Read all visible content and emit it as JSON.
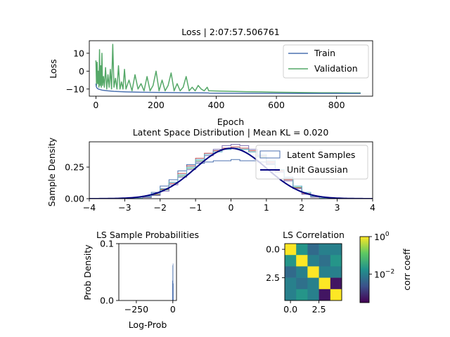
{
  "chart_data": [
    {
      "id": "loss",
      "type": "line",
      "title": "Loss | 2:07:57.506761",
      "xlabel": "Epoch",
      "ylabel": "Loss",
      "xlim": [
        -22,
        920
      ],
      "ylim": [
        -14,
        17
      ],
      "xticks": [
        0,
        200,
        400,
        600,
        800
      ],
      "xtick_labels": [
        "0",
        "200",
        "400",
        "600",
        "800"
      ],
      "yticks": [
        -10,
        0,
        10
      ],
      "ytick_labels": [
        "−10",
        "0",
        "10"
      ],
      "legend": "top-right",
      "series": [
        {
          "name": "Train",
          "color": "#4c72b0",
          "x": [
            0,
            1,
            3,
            6,
            10,
            20,
            40,
            60,
            100,
            150,
            200,
            250,
            300,
            350,
            375,
            376,
            400,
            500,
            600,
            700,
            800,
            880
          ],
          "y": [
            -7.0,
            -8.5,
            -9.3,
            -9.8,
            -10.1,
            -10.6,
            -11.0,
            -11.3,
            -11.6,
            -11.8,
            -11.9,
            -12.0,
            -12.1,
            -12.15,
            -12.2,
            -12.3,
            -12.35,
            -12.4,
            -12.45,
            -12.5,
            -12.5,
            -12.5
          ]
        },
        {
          "name": "Validation",
          "color": "#55a868",
          "x": [
            0,
            2,
            4,
            6,
            8,
            10,
            12,
            14,
            16,
            18,
            20,
            22,
            25,
            28,
            32,
            36,
            40,
            44,
            48,
            52,
            56,
            60,
            65,
            70,
            75,
            80,
            85,
            90,
            95,
            100,
            110,
            120,
            130,
            140,
            150,
            160,
            170,
            180,
            190,
            200,
            210,
            220,
            230,
            240,
            250,
            260,
            270,
            280,
            290,
            300,
            310,
            320,
            330,
            340,
            350,
            360,
            370,
            375,
            380,
            400,
            450,
            500,
            550,
            600,
            650,
            700,
            750,
            800,
            850,
            880
          ],
          "y": [
            6,
            -8,
            5,
            -7,
            0,
            -9,
            12,
            -8,
            3,
            -9,
            10,
            -8,
            -3,
            -9,
            2,
            -10,
            -2,
            -9,
            1,
            -10,
            15,
            -9,
            -4,
            -10,
            3,
            -10,
            -6,
            -10,
            1,
            -10,
            -5,
            -11,
            -2,
            -10,
            -7,
            -11,
            -3,
            -11,
            -8,
            0,
            -11,
            -5,
            -11,
            -8,
            -1,
            -11,
            -7,
            -11,
            -9,
            -3,
            -11,
            -9,
            -11,
            -8,
            -10,
            -11,
            -9,
            -11,
            -11.0,
            -11.1,
            -11.3,
            -11.5,
            -11.6,
            -11.8,
            -11.9,
            -12.0,
            -12.1,
            -12.1,
            -12.2,
            -12.2
          ]
        }
      ]
    },
    {
      "id": "latent",
      "type": "line",
      "title": "Latent Space Distribution | Mean KL = 0.020",
      "xlabel": "",
      "ylabel": "Sample Density",
      "xlim": [
        -4,
        4
      ],
      "ylim": [
        0,
        0.45
      ],
      "xticks": [
        -4,
        -3,
        -2,
        -1,
        0,
        1,
        2,
        3,
        4
      ],
      "xtick_labels": [
        "−4",
        "−3",
        "−2",
        "−1",
        "0",
        "1",
        "2",
        "3",
        "4"
      ],
      "yticks": [
        0,
        0.25
      ],
      "ytick_labels": [
        "0.00",
        "0.25"
      ],
      "legend": "top-right",
      "legend_entries": [
        {
          "name": "Latent Samples",
          "color": "#4c72b0",
          "style": "box"
        },
        {
          "name": "Unit Gaussian",
          "color": "#000080",
          "style": "line"
        }
      ],
      "bin_edges": [
        -2.75,
        -2.5,
        -2.25,
        -2.0,
        -1.75,
        -1.5,
        -1.25,
        -1.0,
        -0.75,
        -0.5,
        -0.25,
        0.0,
        0.25,
        0.5,
        0.75,
        1.0,
        1.25,
        1.5,
        1.75,
        2.0,
        2.25,
        2.5,
        2.75
      ],
      "histograms": [
        {
          "color": "#4c72b0",
          "densities": [
            0.005,
            0.02,
            0.05,
            0.1,
            0.15,
            0.22,
            0.27,
            0.28,
            0.29,
            0.3,
            0.3,
            0.31,
            0.3,
            0.3,
            0.29,
            0.27,
            0.22,
            0.17,
            0.1,
            0.05,
            0.02,
            0.005
          ]
        },
        {
          "color": "#55a868",
          "densities": [
            0.003,
            0.01,
            0.03,
            0.07,
            0.13,
            0.18,
            0.24,
            0.3,
            0.35,
            0.38,
            0.39,
            0.4,
            0.39,
            0.37,
            0.33,
            0.28,
            0.22,
            0.15,
            0.09,
            0.04,
            0.015,
            0.004
          ]
        },
        {
          "color": "#c44e52",
          "densities": [
            0.004,
            0.012,
            0.035,
            0.075,
            0.12,
            0.2,
            0.26,
            0.32,
            0.36,
            0.38,
            0.4,
            0.41,
            0.4,
            0.38,
            0.34,
            0.29,
            0.22,
            0.15,
            0.085,
            0.04,
            0.015,
            0.004
          ]
        },
        {
          "color": "#8172b2",
          "densities": [
            0.002,
            0.008,
            0.025,
            0.06,
            0.11,
            0.17,
            0.23,
            0.29,
            0.34,
            0.39,
            0.42,
            0.43,
            0.42,
            0.39,
            0.34,
            0.28,
            0.21,
            0.14,
            0.08,
            0.035,
            0.012,
            0.003
          ]
        },
        {
          "color": "#64b5cd",
          "densities": [
            0.004,
            0.015,
            0.04,
            0.08,
            0.13,
            0.19,
            0.25,
            0.31,
            0.35,
            0.37,
            0.39,
            0.4,
            0.39,
            0.37,
            0.35,
            0.3,
            0.23,
            0.16,
            0.1,
            0.05,
            0.018,
            0.005
          ]
        }
      ],
      "gaussian": {
        "mean": 0,
        "std": 1,
        "color": "#000080"
      }
    },
    {
      "id": "ls-prob",
      "type": "bar",
      "title": "LS Sample Probabilities",
      "xlabel": "Log-Prob",
      "ylabel": "Prob Density",
      "xlim": [
        -370,
        25
      ],
      "ylim": [
        0,
        0.1
      ],
      "xticks": [
        -250,
        0
      ],
      "xtick_labels": [
        "−250",
        "0"
      ],
      "yticks": [
        0,
        0.1
      ],
      "ytick_labels": [
        "0.0",
        "0.1"
      ],
      "bars": [
        {
          "x0": -4,
          "x1": -2,
          "value": 0.035
        },
        {
          "x0": -2,
          "x1": 0,
          "value": 0.062
        },
        {
          "x0": 0,
          "x1": 2,
          "value": 0.065
        },
        {
          "x0": 2,
          "x1": 4,
          "value": 0.03
        }
      ],
      "bar_color": "#4c72b0"
    },
    {
      "id": "ls-corr",
      "type": "heatmap",
      "title": "LS Correlation",
      "colorbar_label": "corr coeff",
      "colorbar_ticks": [
        {
          "label": "10",
          "exp": "0",
          "value": 1
        },
        {
          "label": "10",
          "exp": "−2",
          "value": 0.01
        }
      ],
      "colorbar_range": [
        0.0003,
        1
      ],
      "colorbar_scale": "log",
      "xticks": [
        0,
        2.5
      ],
      "xtick_labels": [
        "0.0",
        "2.5"
      ],
      "yticks": [
        0,
        2.5
      ],
      "ytick_labels": [
        "0.0",
        "2.5"
      ],
      "matrix": [
        [
          1.0,
          0.02,
          0.005,
          0.01,
          0.01
        ],
        [
          0.02,
          1.0,
          0.01,
          0.006,
          0.02
        ],
        [
          0.005,
          0.01,
          1.0,
          0.01,
          0.01
        ],
        [
          0.01,
          0.006,
          0.01,
          1.0,
          0.0005
        ],
        [
          0.01,
          0.02,
          0.01,
          0.0005,
          1.0
        ]
      ]
    }
  ]
}
